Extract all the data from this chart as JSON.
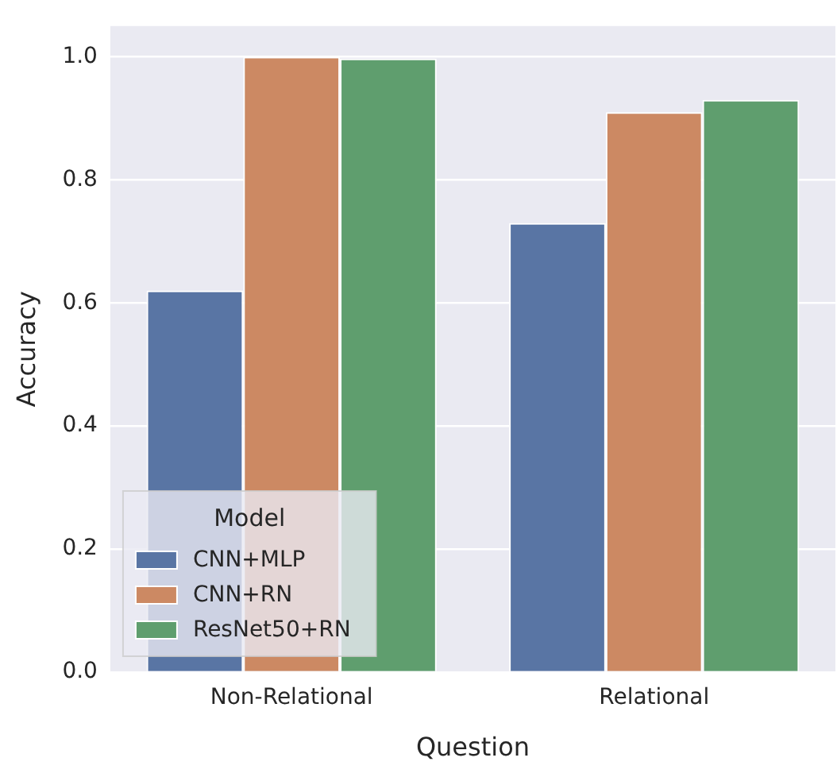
{
  "chart_data": {
    "type": "bar",
    "xlabel": "Question",
    "ylabel": "Accuracy",
    "legend_title": "Model",
    "categories": [
      "Non-Relational",
      "Relational"
    ],
    "series": [
      {
        "name": "CNN+MLP",
        "color": "#5975a4",
        "values": [
          0.62,
          0.73
        ]
      },
      {
        "name": "CNN+RN",
        "color": "#cc8963",
        "values": [
          1.0,
          0.91
        ]
      },
      {
        "name": "ResNet50+RN",
        "color": "#5f9e6e",
        "values": [
          0.997,
          0.93
        ]
      }
    ],
    "ylim": [
      0,
      1.05
    ],
    "yticks": [
      {
        "value": 0,
        "label": "0.0"
      },
      {
        "value": 0.2,
        "label": "0.2"
      },
      {
        "value": 0.4,
        "label": "0.4"
      },
      {
        "value": 0.6,
        "label": "0.6"
      },
      {
        "value": 0.8,
        "label": "0.8"
      },
      {
        "value": 1,
        "label": "1.0"
      }
    ],
    "grid": "y",
    "legend": "bottom left"
  }
}
